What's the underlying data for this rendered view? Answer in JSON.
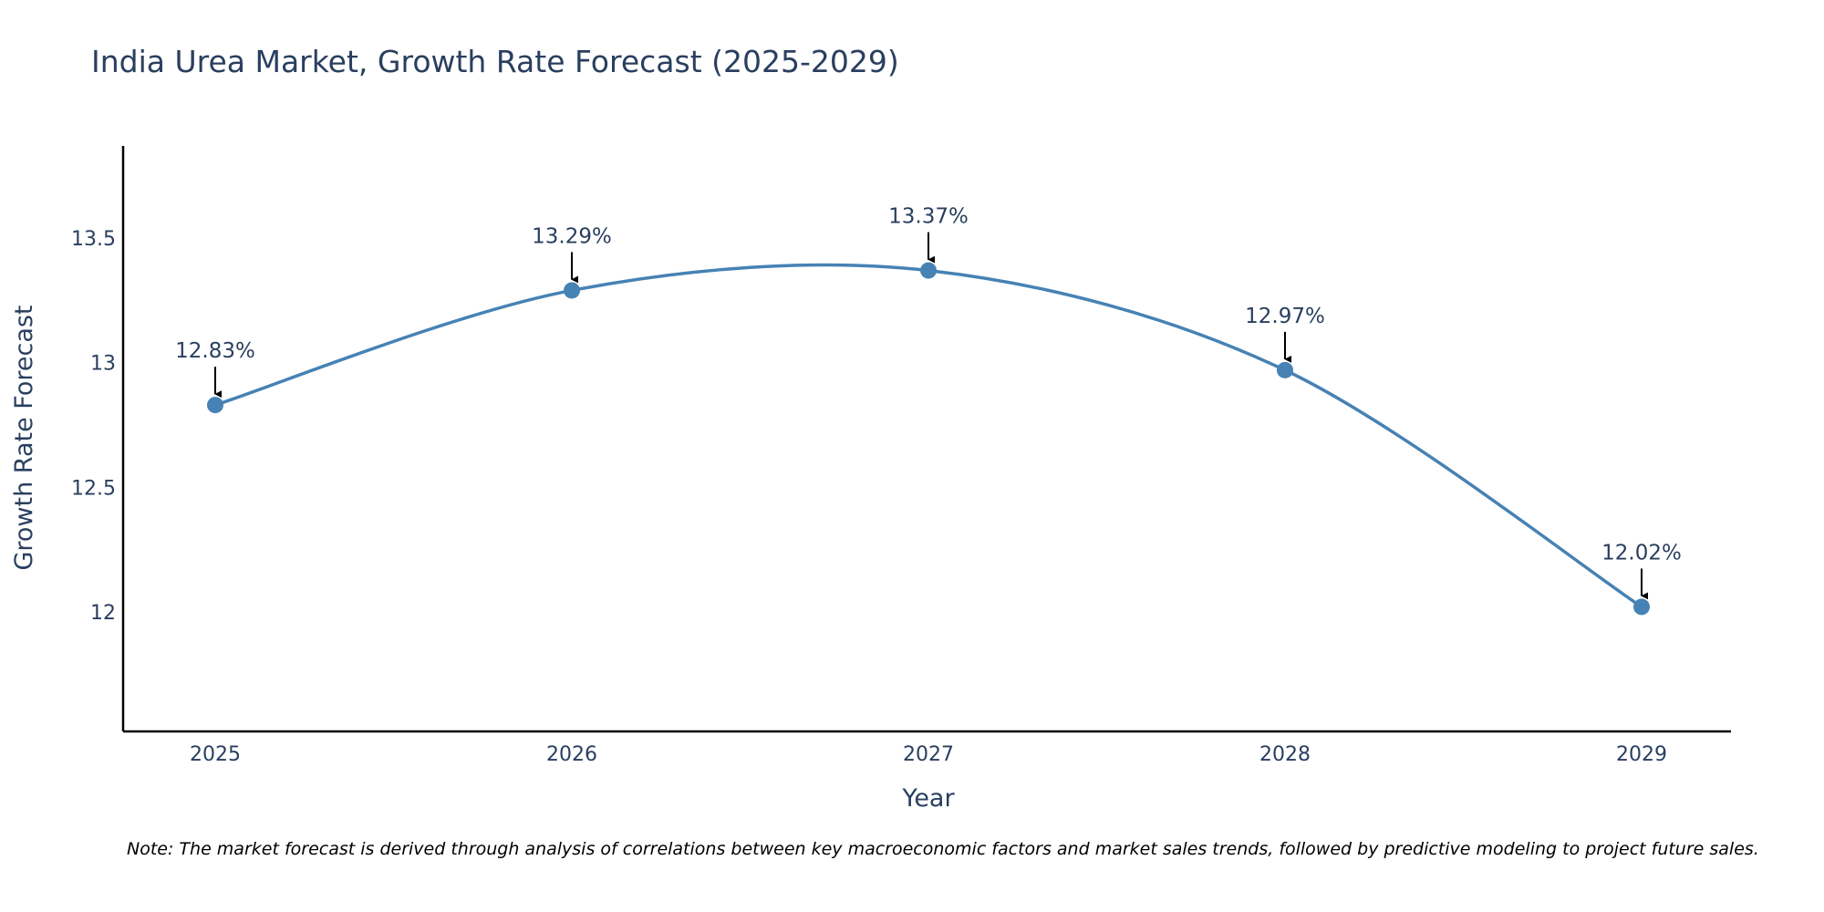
{
  "chart_data": {
    "type": "line",
    "title": "India Urea Market, Growth Rate Forecast (2025-2029)",
    "xlabel": "Year",
    "ylabel": "Growth Rate Forecast",
    "x": [
      "2025",
      "2026",
      "2027",
      "2028",
      "2029"
    ],
    "values": [
      12.83,
      13.29,
      13.37,
      12.97,
      12.02
    ],
    "data_labels": [
      "12.83%",
      "13.29%",
      "13.37%",
      "12.97%",
      "12.02%"
    ],
    "yticks": [
      {
        "value": 12,
        "label": "12"
      },
      {
        "value": 12.5,
        "label": "12.5"
      },
      {
        "value": 13,
        "label": "13"
      },
      {
        "value": 13.5,
        "label": "13.5"
      }
    ],
    "ylim": [
      11.52,
      13.87
    ],
    "line_color": "#4682b4",
    "marker_color": "#4682b4",
    "grid": false,
    "note": "Note: The market forecast is derived through analysis of correlations between key macroeconomic factors and market sales trends, followed by predictive modeling to project future sales."
  }
}
